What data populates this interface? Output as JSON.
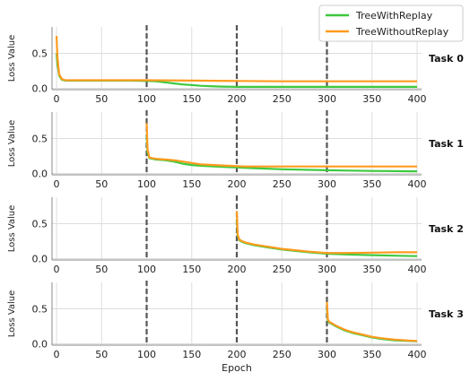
{
  "chart_data": {
    "type": "line",
    "xlabel": "Epoch",
    "ylabel": "Loss Value",
    "xlim": [
      -5,
      405
    ],
    "ylim": [
      -0.02,
      0.88
    ],
    "xticks": [
      0,
      50,
      100,
      150,
      200,
      250,
      300,
      350,
      400
    ],
    "yticks": [
      0.0,
      0.5
    ],
    "task_boundaries": [
      100,
      200,
      300
    ],
    "legend": {
      "placement": "top-right",
      "entries": [
        {
          "name": "TreeWithReplay",
          "color": "#3ec93e"
        },
        {
          "name": "TreeWithoutReplay",
          "color": "#ff9b1f"
        }
      ]
    },
    "panels": [
      {
        "label": "Task 0",
        "series": [
          {
            "name": "TreeWithReplay",
            "x": [
              0,
              1,
              3,
              6,
              10,
              20,
              50,
              80,
              100,
              110,
              120,
              130,
              140,
              150,
              160,
              170,
              180,
              200,
              220,
              250,
              300,
              350,
              400
            ],
            "y": [
              0.5,
              0.35,
              0.18,
              0.12,
              0.11,
              0.11,
              0.11,
              0.11,
              0.105,
              0.1,
              0.085,
              0.07,
              0.055,
              0.045,
              0.035,
              0.03,
              0.025,
              0.02,
              0.02,
              0.02,
              0.02,
              0.02,
              0.02
            ]
          },
          {
            "name": "TreeWithoutReplay",
            "x": [
              0,
              1,
              3,
              6,
              10,
              20,
              50,
              80,
              100,
              150,
              200,
              250,
              300,
              350,
              400
            ],
            "y": [
              0.75,
              0.45,
              0.2,
              0.13,
              0.115,
              0.115,
              0.115,
              0.115,
              0.115,
              0.11,
              0.105,
              0.1,
              0.1,
              0.1,
              0.1
            ]
          }
        ]
      },
      {
        "label": "Task 1",
        "series": [
          {
            "name": "TreeWithReplay",
            "x": [
              100,
              101,
              103,
              106,
              110,
              120,
              130,
              140,
              150,
              160,
              175,
              190,
              200,
              220,
              250,
              300,
              350,
              400
            ],
            "y": [
              0.55,
              0.3,
              0.22,
              0.21,
              0.2,
              0.19,
              0.17,
              0.14,
              0.12,
              0.11,
              0.1,
              0.09,
              0.085,
              0.075,
              0.06,
              0.045,
              0.035,
              0.03
            ]
          },
          {
            "name": "TreeWithoutReplay",
            "x": [
              100,
              101,
              103,
              106,
              110,
              120,
              130,
              140,
              150,
              160,
              175,
              190,
              200,
              210,
              230,
              250,
              300,
              350,
              400
            ],
            "y": [
              0.72,
              0.35,
              0.23,
              0.22,
              0.21,
              0.2,
              0.19,
              0.17,
              0.15,
              0.13,
              0.12,
              0.11,
              0.105,
              0.1,
              0.1,
              0.1,
              0.1,
              0.1,
              0.1
            ]
          }
        ]
      },
      {
        "label": "Task 2",
        "series": [
          {
            "name": "TreeWithReplay",
            "x": [
              200,
              201,
              203,
              206,
              210,
              220,
              235,
              250,
              265,
              280,
              300,
              320,
              350,
              380,
              400
            ],
            "y": [
              0.55,
              0.32,
              0.26,
              0.24,
              0.22,
              0.19,
              0.16,
              0.13,
              0.11,
              0.09,
              0.07,
              0.06,
              0.05,
              0.04,
              0.035
            ]
          },
          {
            "name": "TreeWithoutReplay",
            "x": [
              200,
              201,
              203,
              206,
              210,
              220,
              235,
              250,
              265,
              280,
              300,
              320,
              350,
              380,
              400
            ],
            "y": [
              0.68,
              0.34,
              0.27,
              0.25,
              0.23,
              0.2,
              0.17,
              0.14,
              0.12,
              0.1,
              0.08,
              0.08,
              0.085,
              0.09,
              0.09
            ]
          }
        ]
      },
      {
        "label": "Task 3",
        "series": [
          {
            "name": "TreeWithReplay",
            "x": [
              300,
              301,
              303,
              306,
              310,
              320,
              330,
              340,
              350,
              360,
              375,
              390,
              400
            ],
            "y": [
              0.5,
              0.33,
              0.3,
              0.28,
              0.25,
              0.19,
              0.15,
              0.12,
              0.09,
              0.07,
              0.05,
              0.04,
              0.035
            ]
          },
          {
            "name": "TreeWithoutReplay",
            "x": [
              300,
              301,
              303,
              306,
              310,
              320,
              330,
              340,
              350,
              360,
              375,
              390,
              400
            ],
            "y": [
              0.6,
              0.35,
              0.31,
              0.29,
              0.26,
              0.2,
              0.16,
              0.13,
              0.1,
              0.08,
              0.06,
              0.045,
              0.04
            ]
          }
        ]
      }
    ]
  }
}
